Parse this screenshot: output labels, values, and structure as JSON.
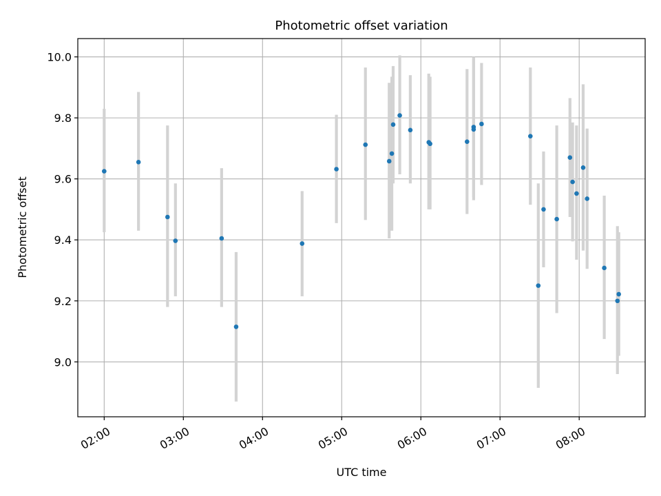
{
  "chart_data": {
    "type": "scatter",
    "title": "Photometric offset variation",
    "xlabel": "UTC time",
    "ylabel": "Photometric offset",
    "x_ticks": [
      "02:00",
      "03:00",
      "04:00",
      "05:00",
      "06:00",
      "07:00",
      "08:00"
    ],
    "y_ticks": [
      "9.0",
      "9.2",
      "9.4",
      "9.6",
      "9.8",
      "10.0"
    ],
    "xlim": [
      "01:40",
      "08:50"
    ],
    "ylim": [
      8.82,
      10.06
    ],
    "grid": true,
    "point_color": "#1f77b4",
    "errorbar_color": "#d3d3d3",
    "points": [
      {
        "t": "02:00",
        "y": 9.625,
        "lo": 9.425,
        "hi": 9.83
      },
      {
        "t": "02:26",
        "y": 9.655,
        "lo": 9.43,
        "hi": 9.885
      },
      {
        "t": "02:48",
        "y": 9.475,
        "lo": 9.18,
        "hi": 9.775
      },
      {
        "t": "02:54",
        "y": 9.397,
        "lo": 9.215,
        "hi": 9.585
      },
      {
        "t": "03:29",
        "y": 9.405,
        "lo": 9.18,
        "hi": 9.635
      },
      {
        "t": "03:40",
        "y": 9.115,
        "lo": 8.87,
        "hi": 9.36
      },
      {
        "t": "04:30",
        "y": 9.388,
        "lo": 9.215,
        "hi": 9.56
      },
      {
        "t": "04:56",
        "y": 9.632,
        "lo": 9.455,
        "hi": 9.81
      },
      {
        "t": "05:18",
        "y": 9.712,
        "lo": 9.465,
        "hi": 9.965
      },
      {
        "t": "05:36",
        "y": 9.658,
        "lo": 9.405,
        "hi": 9.915
      },
      {
        "t": "05:38",
        "y": 9.683,
        "lo": 9.43,
        "hi": 9.935
      },
      {
        "t": "05:39",
        "y": 9.778,
        "lo": 9.585,
        "hi": 9.97
      },
      {
        "t": "05:44",
        "y": 9.808,
        "lo": 9.615,
        "hi": 10.005
      },
      {
        "t": "05:52",
        "y": 9.76,
        "lo": 9.585,
        "hi": 9.94
      },
      {
        "t": "06:06",
        "y": 9.72,
        "lo": 9.5,
        "hi": 9.945
      },
      {
        "t": "06:07",
        "y": 9.715,
        "lo": 9.5,
        "hi": 9.935
      },
      {
        "t": "06:35",
        "y": 9.722,
        "lo": 9.485,
        "hi": 9.96
      },
      {
        "t": "06:40",
        "y": 9.77,
        "lo": 9.54,
        "hi": 10.0
      },
      {
        "t": "06:40",
        "y": 9.762,
        "lo": 9.53,
        "hi": 9.995
      },
      {
        "t": "06:46",
        "y": 9.78,
        "lo": 9.58,
        "hi": 9.98
      },
      {
        "t": "07:23",
        "y": 9.74,
        "lo": 9.515,
        "hi": 9.965
      },
      {
        "t": "07:29",
        "y": 9.25,
        "lo": 8.915,
        "hi": 9.585
      },
      {
        "t": "07:33",
        "y": 9.5,
        "lo": 9.31,
        "hi": 9.69
      },
      {
        "t": "07:43",
        "y": 9.468,
        "lo": 9.16,
        "hi": 9.775
      },
      {
        "t": "07:53",
        "y": 9.67,
        "lo": 9.475,
        "hi": 9.865
      },
      {
        "t": "07:55",
        "y": 9.59,
        "lo": 9.395,
        "hi": 9.785
      },
      {
        "t": "07:58",
        "y": 9.552,
        "lo": 9.335,
        "hi": 9.775
      },
      {
        "t": "08:03",
        "y": 9.637,
        "lo": 9.365,
        "hi": 9.91
      },
      {
        "t": "08:06",
        "y": 9.535,
        "lo": 9.305,
        "hi": 9.765
      },
      {
        "t": "08:19",
        "y": 9.308,
        "lo": 9.075,
        "hi": 9.545
      },
      {
        "t": "08:29",
        "y": 9.2,
        "lo": 8.96,
        "hi": 9.445
      },
      {
        "t": "08:30",
        "y": 9.222,
        "lo": 9.02,
        "hi": 9.425
      }
    ]
  }
}
